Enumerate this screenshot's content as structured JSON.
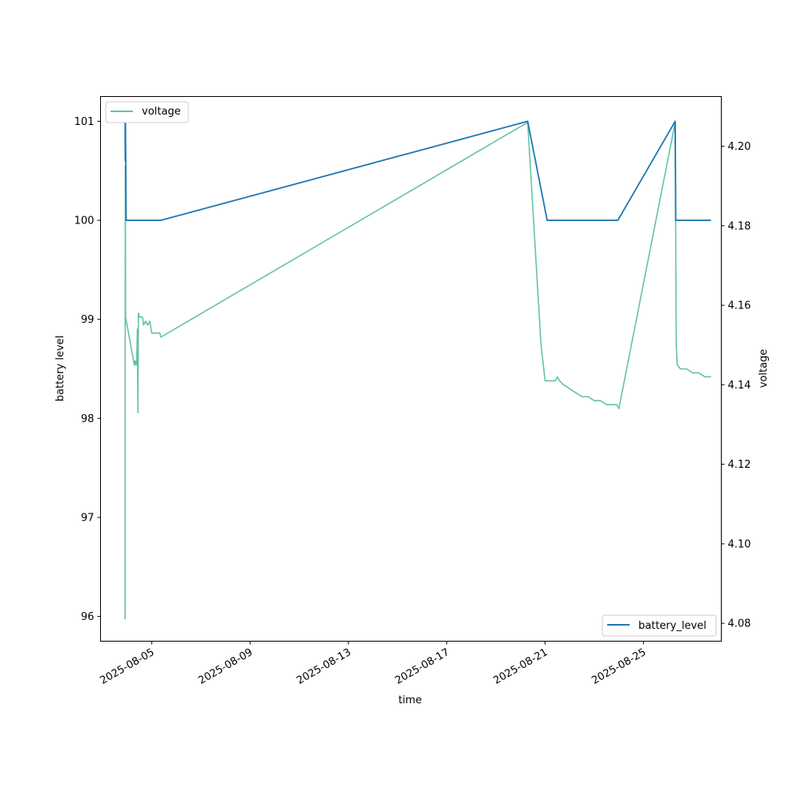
{
  "chart_data": {
    "type": "line",
    "xlabel": "time",
    "ylabel_left": "battery level",
    "ylabel_right": "voltage",
    "x_ticks": [
      "2025-08-05",
      "2025-08-09",
      "2025-08-13",
      "2025-08-17",
      "2025-08-21",
      "2025-08-25"
    ],
    "y_left_ticks": [
      96,
      97,
      98,
      99,
      100,
      101
    ],
    "y_right_ticks": [
      4.08,
      4.1,
      4.12,
      4.14,
      4.16,
      4.18,
      4.2
    ],
    "y_left_range": [
      95.75,
      101.25
    ],
    "y_right_range": [
      4.0755,
      4.2125
    ],
    "x_range": [
      "2025-08-02 22:00",
      "2025-08-28 04:00"
    ],
    "grid": false,
    "colors": {
      "battery_level": "#1f77b4",
      "voltage": "#66c2a5"
    },
    "series": [
      {
        "name": "battery_level",
        "axis": "left",
        "legend": "lower-right",
        "points": [
          [
            "2025-08-03 22:00",
            101
          ],
          [
            "2025-08-03 22:10",
            100.6
          ],
          [
            "2025-08-03 22:20",
            101
          ],
          [
            "2025-08-03 23:00",
            100
          ],
          [
            "2025-08-05 09:00",
            100
          ],
          [
            "2025-08-20 07:00",
            101
          ],
          [
            "2025-08-21 02:00",
            100
          ],
          [
            "2025-08-23 23:00",
            100
          ],
          [
            "2025-08-26 07:00",
            101
          ],
          [
            "2025-08-26 07:30",
            100
          ],
          [
            "2025-08-27 18:00",
            100
          ]
        ]
      },
      {
        "name": "voltage",
        "axis": "right",
        "legend": "upper-left",
        "points": [
          [
            "2025-08-03 22:00",
            4.081
          ],
          [
            "2025-08-03 22:10",
            4.195
          ],
          [
            "2025-08-03 22:30",
            4.157
          ],
          [
            "2025-08-04 07:00",
            4.145
          ],
          [
            "2025-08-04 07:30",
            4.146
          ],
          [
            "2025-08-04 08:00",
            4.145
          ],
          [
            "2025-08-04 09:00",
            4.146
          ],
          [
            "2025-08-04 09:15",
            4.145
          ],
          [
            "2025-08-04 10:00",
            4.154
          ],
          [
            "2025-08-04 10:30",
            4.133
          ],
          [
            "2025-08-04 11:00",
            4.158
          ],
          [
            "2025-08-04 12:00",
            4.157
          ],
          [
            "2025-08-04 15:00",
            4.157
          ],
          [
            "2025-08-04 16:00",
            4.155
          ],
          [
            "2025-08-04 18:00",
            4.156
          ],
          [
            "2025-08-04 20:00",
            4.155
          ],
          [
            "2025-08-04 22:00",
            4.156
          ],
          [
            "2025-08-05 00:00",
            4.153
          ],
          [
            "2025-08-05 08:00",
            4.153
          ],
          [
            "2025-08-05 09:00",
            4.152
          ],
          [
            "2025-08-20 07:00",
            4.206
          ],
          [
            "2025-08-20 20:00",
            4.15
          ],
          [
            "2025-08-21 00:00",
            4.141
          ],
          [
            "2025-08-21 10:00",
            4.141
          ],
          [
            "2025-08-21 12:00",
            4.142
          ],
          [
            "2025-08-21 14:00",
            4.141
          ],
          [
            "2025-08-21 18:00",
            4.14
          ],
          [
            "2025-08-22 00:00",
            4.139
          ],
          [
            "2025-08-22 06:00",
            4.138
          ],
          [
            "2025-08-22 12:00",
            4.137
          ],
          [
            "2025-08-22 18:00",
            4.137
          ],
          [
            "2025-08-23 00:00",
            4.136
          ],
          [
            "2025-08-23 06:00",
            4.136
          ],
          [
            "2025-08-23 12:00",
            4.135
          ],
          [
            "2025-08-23 18:00",
            4.135
          ],
          [
            "2025-08-23 22:00",
            4.135
          ],
          [
            "2025-08-24 00:00",
            4.134
          ],
          [
            "2025-08-26 07:00",
            4.206
          ],
          [
            "2025-08-26 08:00",
            4.15
          ],
          [
            "2025-08-26 09:00",
            4.145
          ],
          [
            "2025-08-26 12:00",
            4.144
          ],
          [
            "2025-08-26 18:00",
            4.144
          ],
          [
            "2025-08-27 00:00",
            4.143
          ],
          [
            "2025-08-27 06:00",
            4.143
          ],
          [
            "2025-08-27 12:00",
            4.142
          ],
          [
            "2025-08-27 18:00",
            4.142
          ]
        ]
      }
    ]
  }
}
